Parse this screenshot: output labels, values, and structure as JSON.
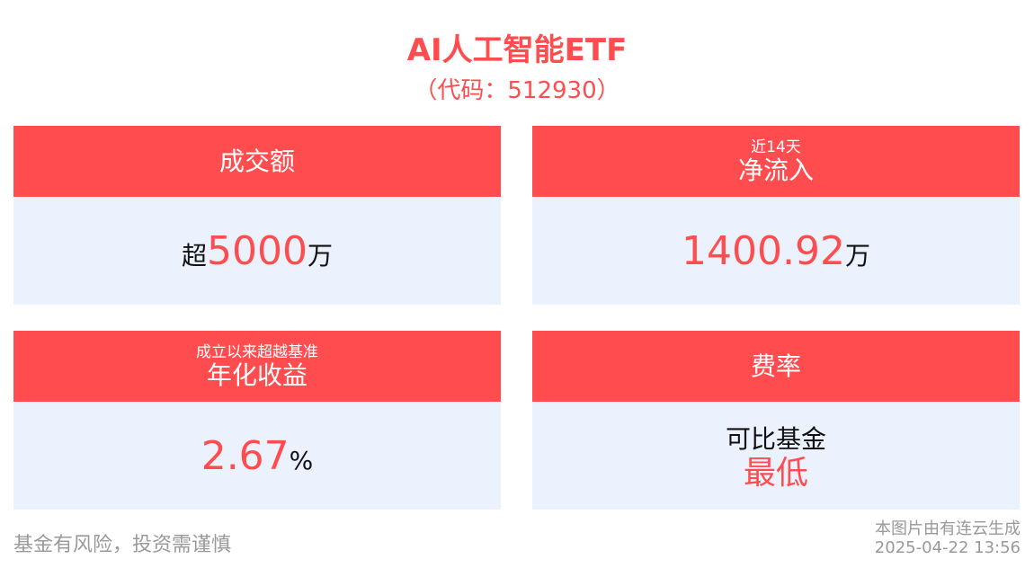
{
  "header": {
    "title": "AI人工智能ETF",
    "code": "（代码：512930）"
  },
  "cards": [
    {
      "title": "成交额",
      "prefix": "超",
      "value": "5000",
      "unit": "万"
    },
    {
      "subtitle": "近14天",
      "title": "净流入",
      "value": "1400.92",
      "unit": "万"
    },
    {
      "subtitle": "成立以来超越基准",
      "title": "年化收益",
      "value": "2.67",
      "unit": "%"
    },
    {
      "title": "费率",
      "line1": "可比基金",
      "line2": "最低"
    }
  ],
  "footer": {
    "disclaimer": "基金有风险，投资需谨慎",
    "source": "本图片由有连云生成",
    "timestamp": "2025-04-22 13:56"
  },
  "colors": {
    "accent": "#ff4c4f",
    "card_bg": "#ebf2fe"
  }
}
